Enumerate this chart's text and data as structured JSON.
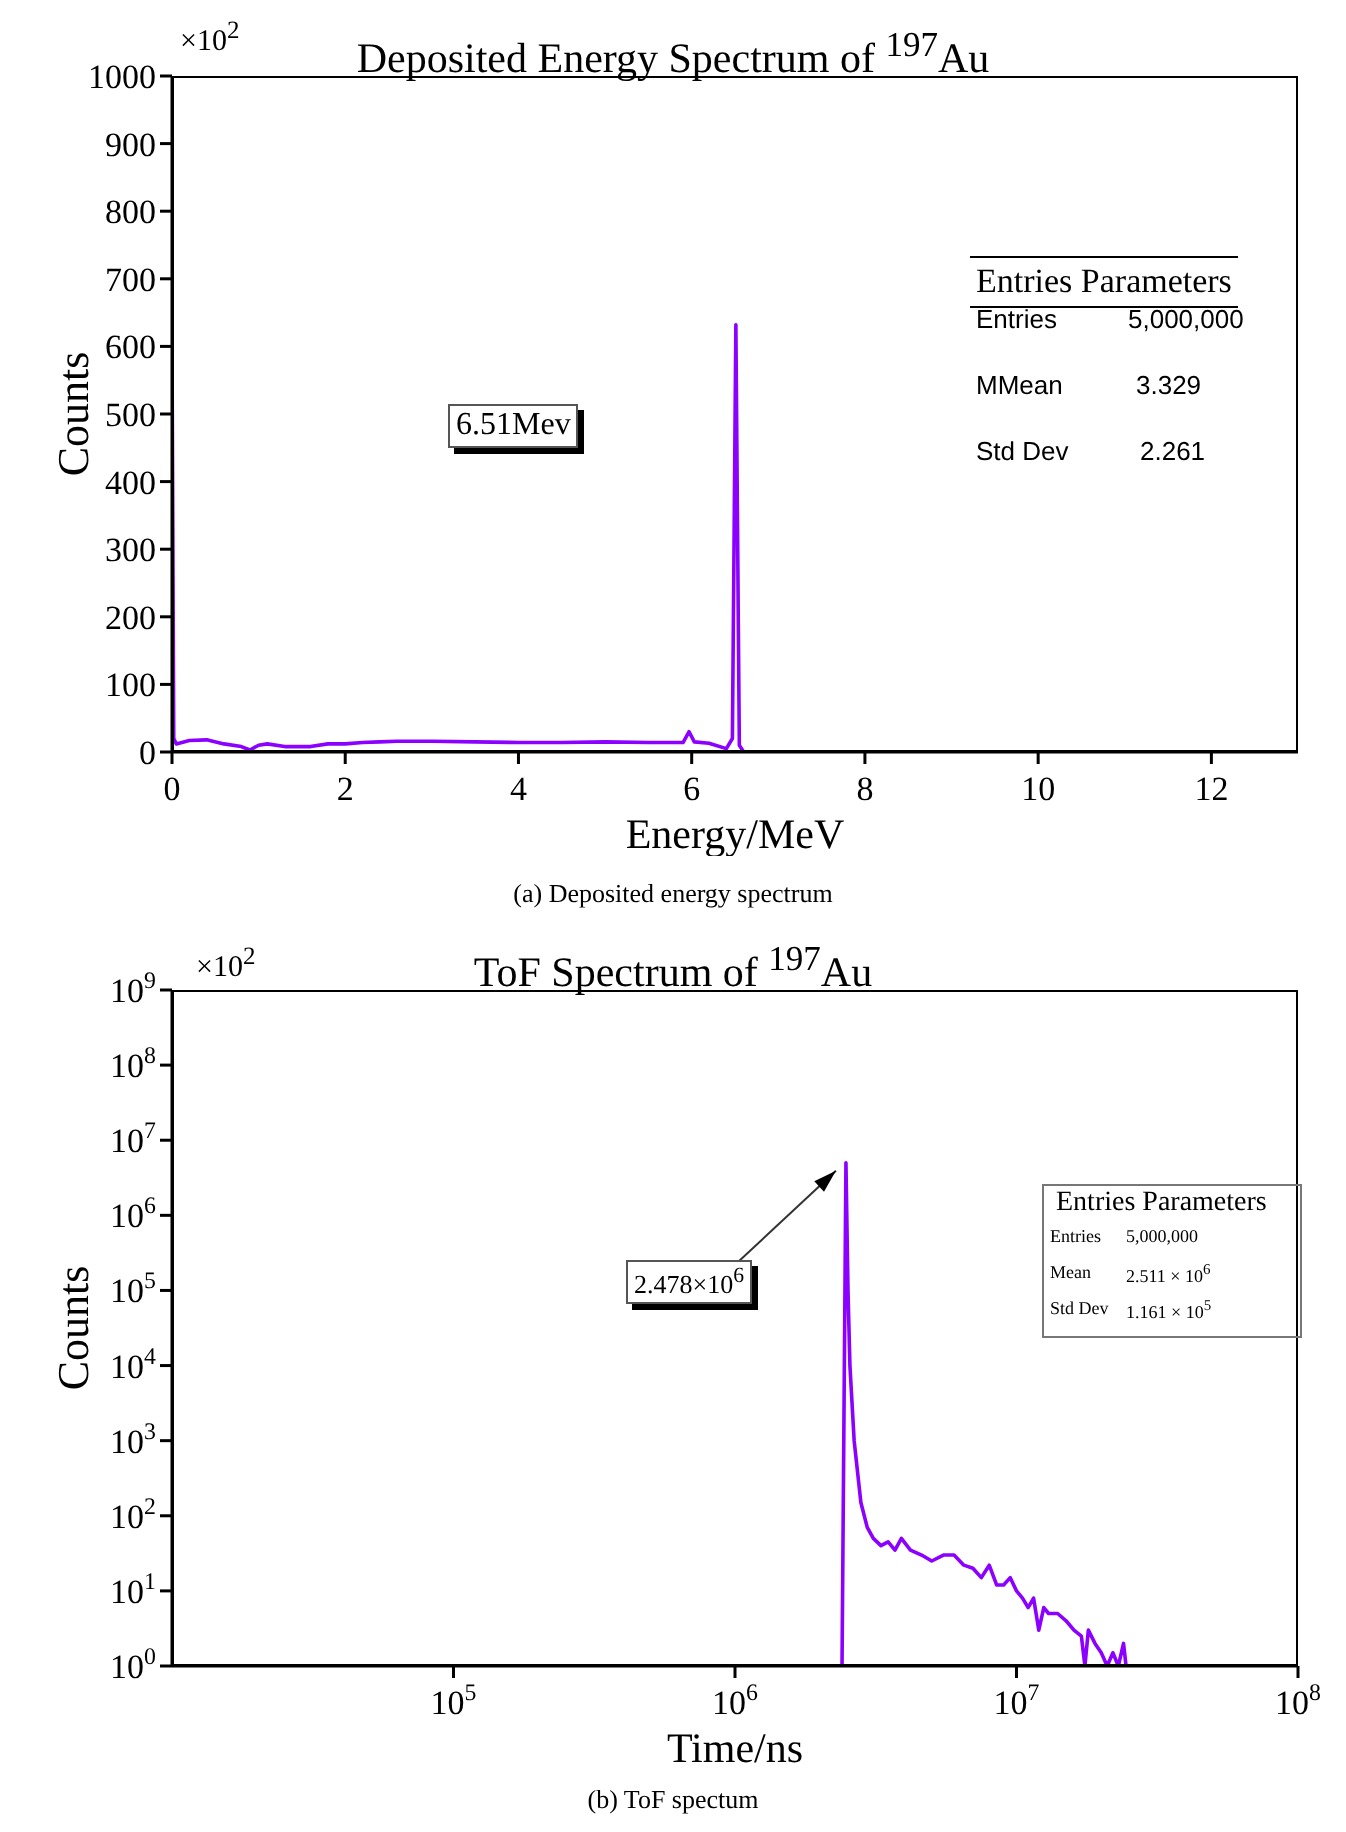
{
  "chart_data": [
    {
      "type": "line",
      "title": "Deposited Energy Spectrum of $^{197}$Au",
      "xlabel": "Energy/MeV",
      "ylabel": "Counts",
      "color": "#8b00ff",
      "x": [
        0,
        0.02,
        0.05,
        0.2,
        0.4,
        0.6,
        0.8,
        0.9,
        1.0,
        1.1,
        1.3,
        1.6,
        1.8,
        2.0,
        2.2,
        2.4,
        2.6,
        3.0,
        3.5,
        4.0,
        4.5,
        5.0,
        5.5,
        5.9,
        5.97,
        6.03,
        6.2,
        6.4,
        6.47,
        6.51,
        6.55,
        6.6
      ],
      "values": [
        600,
        20,
        12,
        17,
        18,
        12,
        8,
        3,
        10,
        12,
        8,
        8,
        12,
        12,
        14,
        15,
        16,
        16,
        15,
        14,
        14,
        15,
        14,
        14,
        30,
        15,
        13,
        5,
        20,
        632,
        10,
        0
      ],
      "xlim": [
        0,
        13
      ],
      "xticks": [
        0,
        2,
        4,
        6,
        8,
        10,
        12
      ],
      "ylim": [
        0,
        1000
      ],
      "yticks": [
        0,
        100,
        200,
        300,
        400,
        500,
        600,
        700,
        800,
        900,
        1000
      ],
      "annotations": [
        "×10$^{2}$",
        "6.51Mev",
        "Entries Parameters",
        "Entries",
        "5,000,000",
        "MMean",
        "3.329",
        "Std Dev",
        "2.261",
        "(a) Deposited energy spectrum"
      ]
    },
    {
      "type": "line",
      "title": "ToF Spectrum of $^{197}$Au",
      "xlabel": "Time/ns",
      "ylabel": "Counts",
      "color": "#8b00ff",
      "log": "xy",
      "x": [
        2400000,
        2478000,
        2520000,
        2560000,
        2650000,
        2800000,
        2950000,
        3100000,
        3300000,
        3500000,
        3700000,
        3900000,
        4200000,
        4600000,
        5000000,
        5500000,
        6000000,
        6500000,
        7000000,
        7500000,
        8000000,
        8500000,
        9000000,
        9500000,
        10000000,
        10500000,
        11000000,
        11500000,
        12000000,
        12500000,
        13000000,
        14000000,
        15000000,
        16000000,
        17000000,
        17500000,
        18000000,
        19000000,
        20000000,
        21000000,
        22000000,
        23000000,
        24000000,
        24500000
      ],
      "values": [
        1,
        5000000,
        100000,
        10000,
        1000,
        150,
        70,
        50,
        40,
        45,
        35,
        50,
        35,
        30,
        25,
        30,
        30,
        22,
        20,
        15,
        22,
        12,
        12,
        15,
        10,
        8,
        6,
        8,
        3,
        6,
        5,
        5,
        4,
        3,
        2.5,
        1,
        3,
        2,
        1.5,
        1,
        1.5,
        1,
        2,
        1
      ],
      "xlim": [
        10000,
        100000000
      ],
      "xticks": [
        {
          "value": 100000,
          "label": "10$^{5}$"
        },
        {
          "value": 1000000,
          "label": "10$^{6}$"
        },
        {
          "value": 10000000,
          "label": "10$^{7}$"
        },
        {
          "value": 100000000,
          "label": "10$^{8}$"
        }
      ],
      "ylim": [
        1,
        1000000000
      ],
      "yticks": [
        {
          "value": 1,
          "label": "10$^{0}$"
        },
        {
          "value": 10,
          "label": "10$^{1}$"
        },
        {
          "value": 100,
          "label": "10$^{2}$"
        },
        {
          "value": 1000,
          "label": "10$^{3}$"
        },
        {
          "value": 10000,
          "label": "10$^{4}$"
        },
        {
          "value": 100000,
          "label": "10$^{5}$"
        },
        {
          "value": 1000000,
          "label": "10$^{6}$"
        },
        {
          "value": 10000000,
          "label": "10$^{7}$"
        },
        {
          "value": 100000000,
          "label": "10$^{8}$"
        },
        {
          "value": 1000000000,
          "label": "10$^{9}$"
        }
      ],
      "annotations": [
        "×10$^{2}$",
        {
          "text": "2.478×10$^{6}$",
          "x": 2478000,
          "y": 5000000
        },
        "Entries Parameters",
        "Entries",
        "5,000,000",
        "Mean",
        "2.511 × 10$^{6}$",
        "Std Dev",
        "1.161 × 10$^{5}$",
        "(b) ToF spectum"
      ]
    }
  ]
}
